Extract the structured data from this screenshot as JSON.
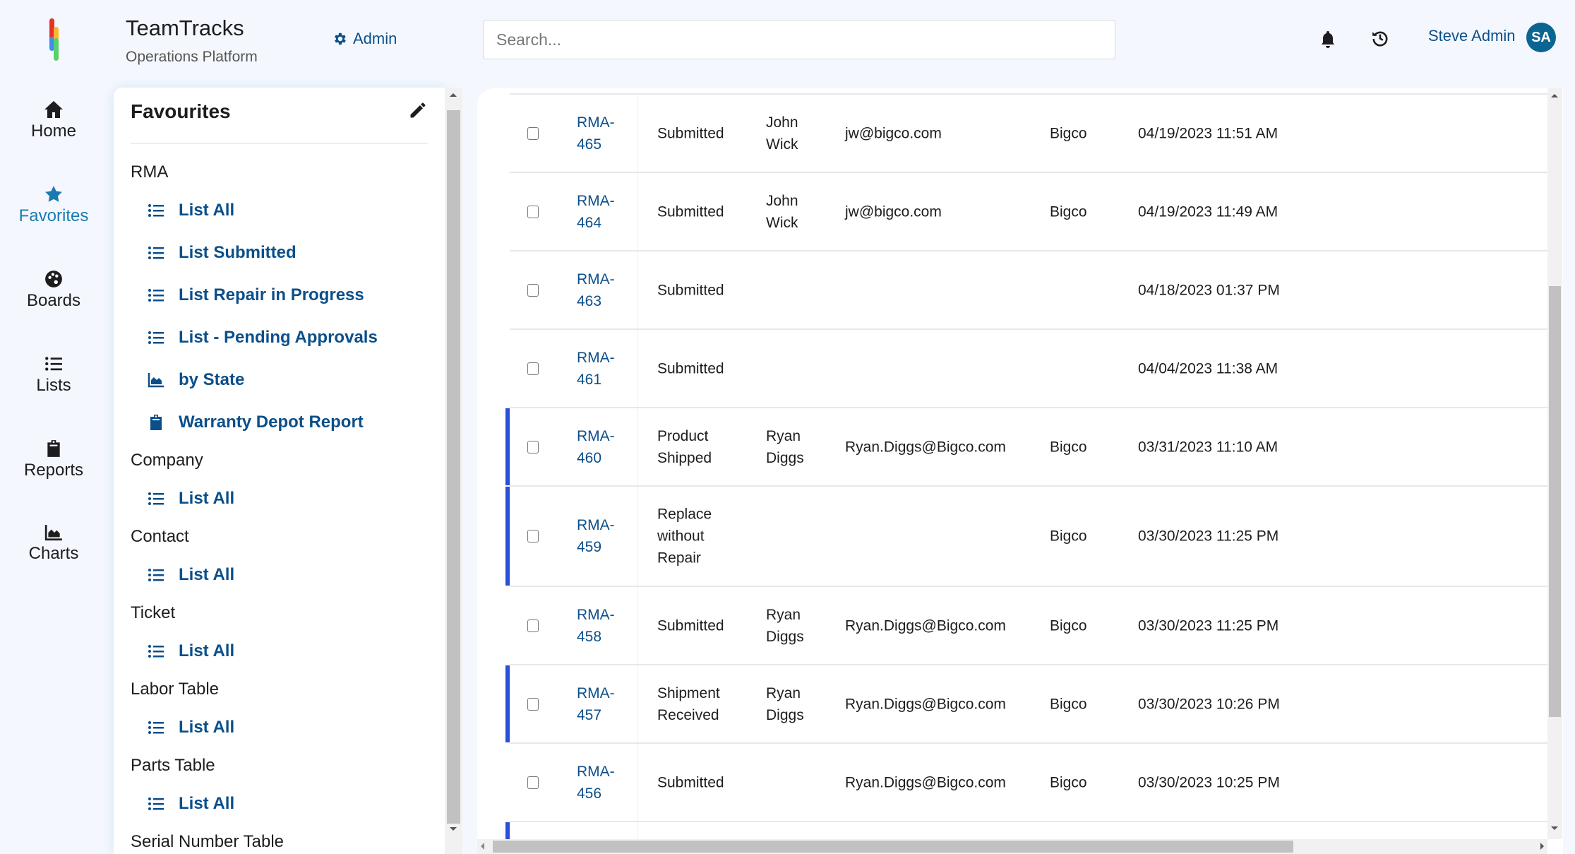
{
  "header": {
    "app_title": "TeamTracks",
    "app_subtitle": "Operations Platform",
    "admin_label": "Admin",
    "search_placeholder": "Search...",
    "user_name": "Steve Admin",
    "user_initials": "SA"
  },
  "colors": {
    "brand": "#0b4f8a",
    "accent": "#1a7ab0",
    "row_highlight": "#2a4fd8",
    "avatar": "#0a6593"
  },
  "nav": [
    {
      "label": "Home",
      "icon": "home-icon"
    },
    {
      "label": "Favorites",
      "icon": "star-icon",
      "active": true
    },
    {
      "label": "Boards",
      "icon": "palette-icon"
    },
    {
      "label": "Lists",
      "icon": "list-icon"
    },
    {
      "label": "Reports",
      "icon": "clipboard-icon"
    },
    {
      "label": "Charts",
      "icon": "chart-area-icon"
    }
  ],
  "favourites": {
    "title": "Favourites",
    "groups": [
      {
        "name": "RMA",
        "items": [
          {
            "label": "List All",
            "icon": "list-icon"
          },
          {
            "label": "List Submitted",
            "icon": "list-icon"
          },
          {
            "label": "List Repair in Progress",
            "icon": "list-icon"
          },
          {
            "label": "List - Pending Approvals",
            "icon": "list-icon"
          },
          {
            "label": "by State",
            "icon": "chart-area-icon"
          },
          {
            "label": "Warranty Depot Report",
            "icon": "clipboard-icon"
          }
        ]
      },
      {
        "name": "Company",
        "items": [
          {
            "label": "List All",
            "icon": "list-icon"
          }
        ]
      },
      {
        "name": "Contact",
        "items": [
          {
            "label": "List All",
            "icon": "list-icon"
          }
        ]
      },
      {
        "name": "Ticket",
        "items": [
          {
            "label": "List All",
            "icon": "list-icon"
          }
        ]
      },
      {
        "name": "Labor Table",
        "items": [
          {
            "label": "List All",
            "icon": "list-icon"
          }
        ]
      },
      {
        "name": "Parts Table",
        "items": [
          {
            "label": "List All",
            "icon": "list-icon"
          }
        ]
      },
      {
        "name": "Serial Number Table",
        "items": []
      }
    ]
  },
  "table": {
    "rows": [
      {
        "id": "RMA-465",
        "status": "Submitted",
        "name": "John Wick",
        "email": "jw@bigco.com",
        "company": "Bigco",
        "date": "04/19/2023 11:51 AM",
        "highlight": false
      },
      {
        "id": "RMA-464",
        "status": "Submitted",
        "name": "John Wick",
        "email": "jw@bigco.com",
        "company": "Bigco",
        "date": "04/19/2023 11:49 AM",
        "highlight": false
      },
      {
        "id": "RMA-463",
        "status": "Submitted",
        "name": "",
        "email": "",
        "company": "",
        "date": "04/18/2023 01:37 PM",
        "highlight": false
      },
      {
        "id": "RMA-461",
        "status": "Submitted",
        "name": "",
        "email": "",
        "company": "",
        "date": "04/04/2023 11:38 AM",
        "highlight": false
      },
      {
        "id": "RMA-460",
        "status": "Product Shipped",
        "name": "Ryan Diggs",
        "email": "Ryan.Diggs@Bigco.com",
        "company": "Bigco",
        "date": "03/31/2023 11:10 AM",
        "highlight": true
      },
      {
        "id": "RMA-459",
        "status": "Replace without Repair",
        "name": "",
        "email": "",
        "company": "Bigco",
        "date": "03/30/2023 11:25 PM",
        "highlight": true
      },
      {
        "id": "RMA-458",
        "status": "Submitted",
        "name": "Ryan Diggs",
        "email": "Ryan.Diggs@Bigco.com",
        "company": "Bigco",
        "date": "03/30/2023 11:25 PM",
        "highlight": false
      },
      {
        "id": "RMA-457",
        "status": "Shipment Received",
        "name": "Ryan Diggs",
        "email": "Ryan.Diggs@Bigco.com",
        "company": "Bigco",
        "date": "03/30/2023 10:26 PM",
        "highlight": true
      },
      {
        "id": "RMA-456",
        "status": "Submitted",
        "name": "",
        "email": "Ryan.Diggs@Bigco.com",
        "company": "Bigco",
        "date": "03/30/2023 10:25 PM",
        "highlight": false
      }
    ]
  }
}
